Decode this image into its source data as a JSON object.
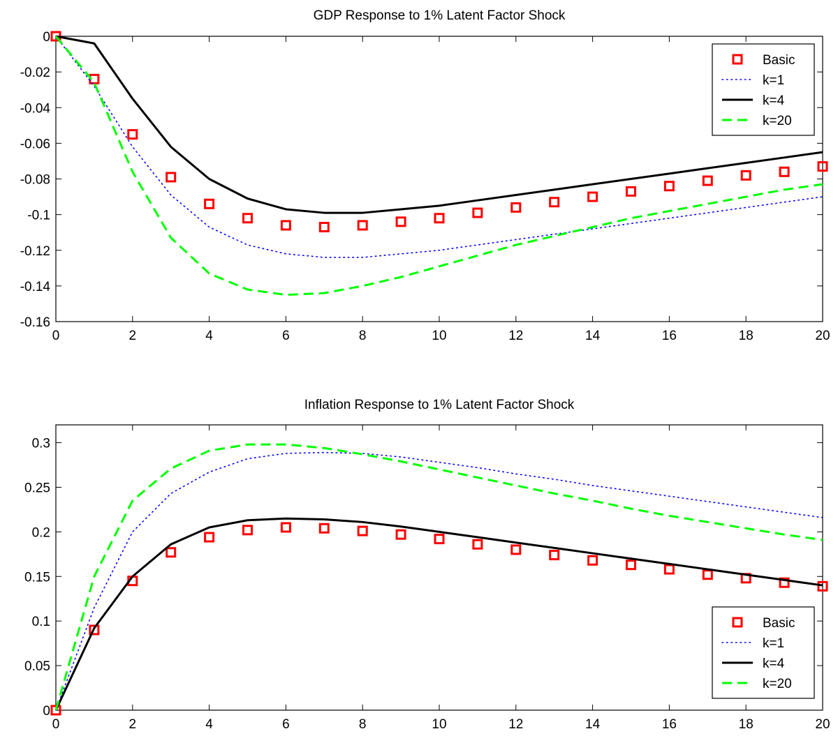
{
  "chart_data": [
    {
      "type": "line",
      "title": "GDP Response to 1% Latent Factor Shock",
      "xlabel": "",
      "ylabel": "",
      "xlim": [
        0,
        20
      ],
      "ylim": [
        -0.16,
        0
      ],
      "xticks": [
        "0",
        "2",
        "4",
        "6",
        "8",
        "10",
        "12",
        "14",
        "16",
        "18",
        "20"
      ],
      "yticks": [
        "0",
        "-0.02",
        "-0.04",
        "-0.06",
        "-0.08",
        "-0.1",
        "-0.12",
        "-0.14",
        "-0.16"
      ],
      "legend_position": "top-right",
      "grid": false,
      "x": [
        0,
        1,
        2,
        3,
        4,
        5,
        6,
        7,
        8,
        9,
        10,
        11,
        12,
        13,
        14,
        15,
        16,
        17,
        18,
        19,
        20
      ],
      "series": [
        {
          "name": "Basic",
          "style": "markers",
          "marker": "square",
          "color": "#ff0000",
          "values": [
            0,
            -0.024,
            -0.055,
            -0.079,
            -0.094,
            -0.102,
            -0.106,
            -0.107,
            -0.106,
            -0.104,
            -0.102,
            -0.099,
            -0.096,
            -0.093,
            -0.09,
            -0.087,
            -0.084,
            -0.081,
            -0.078,
            -0.076,
            -0.073
          ]
        },
        {
          "name": "k=1",
          "style": "dotted",
          "color": "#0000ff",
          "values": [
            0,
            -0.028,
            -0.062,
            -0.089,
            -0.107,
            -0.117,
            -0.122,
            -0.124,
            -0.124,
            -0.122,
            -0.12,
            -0.117,
            -0.114,
            -0.111,
            -0.108,
            -0.105,
            -0.102,
            -0.099,
            -0.096,
            -0.093,
            -0.09
          ]
        },
        {
          "name": "k=4",
          "style": "solid",
          "color": "#000000",
          "values": [
            0,
            -0.004,
            -0.035,
            -0.062,
            -0.08,
            -0.091,
            -0.097,
            -0.099,
            -0.099,
            -0.097,
            -0.095,
            -0.092,
            -0.089,
            -0.086,
            -0.083,
            -0.08,
            -0.077,
            -0.074,
            -0.071,
            -0.068,
            -0.065
          ]
        },
        {
          "name": "k=20",
          "style": "dashed",
          "color": "#00ff00",
          "values": [
            0,
            -0.026,
            -0.076,
            -0.113,
            -0.133,
            -0.142,
            -0.145,
            -0.144,
            -0.14,
            -0.135,
            -0.129,
            -0.123,
            -0.117,
            -0.112,
            -0.107,
            -0.102,
            -0.098,
            -0.094,
            -0.09,
            -0.086,
            -0.083
          ]
        }
      ]
    },
    {
      "type": "line",
      "title": "Inflation Response to 1% Latent Factor Shock",
      "xlabel": "",
      "ylabel": "",
      "xlim": [
        0,
        20
      ],
      "ylim": [
        0,
        0.32
      ],
      "xticks": [
        "0",
        "2",
        "4",
        "6",
        "8",
        "10",
        "12",
        "14",
        "16",
        "18",
        "20"
      ],
      "yticks": [
        "0",
        "0.05",
        "0.1",
        "0.15",
        "0.2",
        "0.25",
        "0.3"
      ],
      "legend_position": "bottom-right",
      "grid": false,
      "x": [
        0,
        1,
        2,
        3,
        4,
        5,
        6,
        7,
        8,
        9,
        10,
        11,
        12,
        13,
        14,
        15,
        16,
        17,
        18,
        19,
        20
      ],
      "series": [
        {
          "name": "Basic",
          "style": "markers",
          "marker": "square",
          "color": "#ff0000",
          "values": [
            0,
            0.09,
            0.145,
            0.177,
            0.194,
            0.202,
            0.205,
            0.204,
            0.201,
            0.197,
            0.192,
            0.186,
            0.18,
            0.174,
            0.168,
            0.163,
            0.158,
            0.152,
            0.148,
            0.143,
            0.139
          ]
        },
        {
          "name": "k=1",
          "style": "dotted",
          "color": "#0000ff",
          "values": [
            0,
            0.115,
            0.2,
            0.243,
            0.267,
            0.282,
            0.288,
            0.289,
            0.288,
            0.284,
            0.278,
            0.272,
            0.265,
            0.259,
            0.252,
            0.246,
            0.24,
            0.234,
            0.228,
            0.222,
            0.216
          ]
        },
        {
          "name": "k=4",
          "style": "solid",
          "color": "#000000",
          "values": [
            0,
            0.092,
            0.15,
            0.186,
            0.205,
            0.213,
            0.215,
            0.214,
            0.211,
            0.206,
            0.2,
            0.194,
            0.188,
            0.182,
            0.176,
            0.17,
            0.164,
            0.158,
            0.152,
            0.146,
            0.14
          ]
        },
        {
          "name": "k=20",
          "style": "dashed",
          "color": "#00ff00",
          "values": [
            0,
            0.15,
            0.235,
            0.271,
            0.291,
            0.298,
            0.298,
            0.294,
            0.287,
            0.279,
            0.27,
            0.261,
            0.252,
            0.243,
            0.235,
            0.226,
            0.218,
            0.211,
            0.204,
            0.197,
            0.191
          ]
        }
      ]
    }
  ]
}
